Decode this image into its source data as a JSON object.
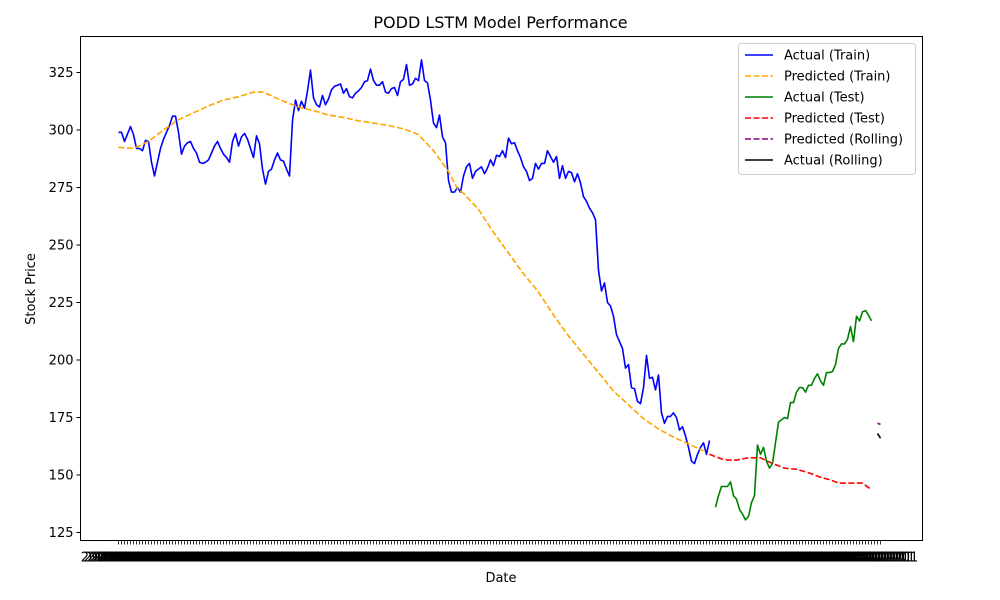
{
  "chart_data": {
    "type": "line",
    "title": "PODD LSTM Model Performance",
    "xlabel": "Date",
    "ylabel": "Stock Price",
    "x_tick_text": "2023-01-01",
    "ylim": [
      121,
      341
    ],
    "yticks": [
      125,
      150,
      175,
      200,
      225,
      250,
      275,
      300,
      325
    ],
    "xticks_count": 255,
    "grid": false,
    "legend_position": "top-right",
    "series": [
      {
        "name": "Actual (Train)",
        "color": "#0000ff",
        "dash": "solid",
        "points": [
          [
            0,
            299
          ],
          [
            1,
            299
          ],
          [
            2,
            295
          ],
          [
            4,
            301.5
          ],
          [
            5,
            298
          ],
          [
            6,
            292
          ],
          [
            7,
            292
          ],
          [
            8,
            291
          ],
          [
            9,
            295.5
          ],
          [
            10,
            295
          ],
          [
            11,
            286
          ],
          [
            12,
            280
          ],
          [
            13,
            286
          ],
          [
            14,
            292
          ],
          [
            15,
            296
          ],
          [
            16,
            299
          ],
          [
            17,
            302
          ],
          [
            18,
            306
          ],
          [
            19,
            306
          ],
          [
            20,
            299
          ],
          [
            21,
            289.5
          ],
          [
            22,
            293
          ],
          [
            23,
            294.5
          ],
          [
            24,
            295
          ],
          [
            25,
            292
          ],
          [
            26,
            290
          ],
          [
            27,
            286
          ],
          [
            28,
            285.5
          ],
          [
            29,
            286
          ],
          [
            30,
            287
          ],
          [
            31,
            290
          ],
          [
            32,
            293
          ],
          [
            33,
            295
          ],
          [
            34,
            292
          ],
          [
            35,
            289.5
          ],
          [
            36,
            288
          ],
          [
            37,
            286
          ],
          [
            38,
            295
          ],
          [
            39,
            298.5
          ],
          [
            40,
            293
          ],
          [
            41,
            297
          ],
          [
            42,
            298.5
          ],
          [
            43,
            296
          ],
          [
            44,
            292
          ],
          [
            45,
            288
          ],
          [
            46,
            297.5
          ],
          [
            47,
            294
          ],
          [
            48,
            283
          ],
          [
            49,
            276.5
          ],
          [
            50,
            282
          ],
          [
            51,
            283
          ],
          [
            52,
            287
          ],
          [
            53,
            290
          ],
          [
            54,
            287
          ],
          [
            55,
            286.5
          ],
          [
            56,
            283
          ],
          [
            57,
            280
          ],
          [
            58,
            304
          ],
          [
            59,
            313
          ],
          [
            60,
            308.5
          ],
          [
            61,
            312.5
          ],
          [
            62,
            309.5
          ],
          [
            63,
            317
          ],
          [
            64,
            326
          ],
          [
            65,
            314
          ],
          [
            66,
            311
          ],
          [
            67,
            310
          ],
          [
            68,
            315
          ],
          [
            69,
            311
          ],
          [
            70,
            313.5
          ],
          [
            71,
            317.5
          ],
          [
            72,
            319
          ],
          [
            73,
            319.5
          ],
          [
            74,
            320
          ],
          [
            75,
            316
          ],
          [
            76,
            318
          ],
          [
            77,
            314.5
          ],
          [
            78,
            314
          ],
          [
            79,
            316
          ],
          [
            80,
            317
          ],
          [
            81,
            318.5
          ],
          [
            82,
            321
          ],
          [
            83,
            321.5
          ],
          [
            84,
            326.5
          ],
          [
            85,
            321.5
          ],
          [
            86,
            319.5
          ],
          [
            87,
            319.5
          ],
          [
            88,
            321
          ],
          [
            89,
            316.5
          ],
          [
            90,
            316
          ],
          [
            91,
            318
          ],
          [
            92,
            318.5
          ],
          [
            93,
            315
          ],
          [
            94,
            321
          ],
          [
            95,
            322
          ],
          [
            96,
            328.5
          ],
          [
            97,
            319.5
          ],
          [
            98,
            320
          ],
          [
            99,
            322.5
          ],
          [
            100,
            321.5
          ],
          [
            101,
            330.5
          ],
          [
            102,
            321.5
          ],
          [
            103,
            320.5
          ],
          [
            104,
            313
          ],
          [
            105,
            303
          ],
          [
            106,
            301
          ],
          [
            107,
            306.5
          ],
          [
            108,
            297
          ],
          [
            109,
            294.5
          ],
          [
            110,
            278
          ],
          [
            111,
            273
          ],
          [
            112,
            273
          ],
          [
            113,
            275
          ],
          [
            114,
            273
          ],
          [
            115,
            280
          ],
          [
            116,
            284
          ],
          [
            117,
            285.5
          ],
          [
            118,
            279
          ],
          [
            119,
            282
          ],
          [
            120,
            283
          ],
          [
            121,
            284
          ],
          [
            122,
            281
          ],
          [
            123,
            283.5
          ],
          [
            124,
            287
          ],
          [
            125,
            284.5
          ],
          [
            126,
            289
          ],
          [
            127,
            288.5
          ],
          [
            128,
            291
          ],
          [
            129,
            288
          ],
          [
            130,
            296.5
          ],
          [
            131,
            294
          ],
          [
            132,
            294.5
          ],
          [
            133,
            291
          ],
          [
            134,
            288
          ],
          [
            135,
            284
          ],
          [
            136,
            282
          ],
          [
            137,
            278
          ],
          [
            138,
            279
          ],
          [
            139,
            285.5
          ],
          [
            140,
            283
          ],
          [
            141,
            285.5
          ],
          [
            142,
            285.5
          ],
          [
            143,
            291
          ],
          [
            144,
            288.5
          ],
          [
            145,
            286
          ],
          [
            146,
            288.5
          ],
          [
            147,
            279
          ],
          [
            148,
            284.5
          ],
          [
            149,
            279
          ],
          [
            150,
            282
          ],
          [
            151,
            281.5
          ],
          [
            152,
            277.5
          ],
          [
            153,
            281
          ],
          [
            154,
            277
          ],
          [
            155,
            271
          ],
          [
            156,
            269
          ],
          [
            157,
            266
          ],
          [
            158,
            264
          ],
          [
            159,
            261
          ],
          [
            160,
            239
          ],
          [
            161,
            230
          ],
          [
            162,
            233.5
          ],
          [
            163,
            225
          ],
          [
            164,
            223.5
          ],
          [
            165,
            219
          ],
          [
            166,
            211
          ],
          [
            167,
            208
          ],
          [
            168,
            205
          ],
          [
            169,
            196.5
          ],
          [
            170,
            198
          ],
          [
            171,
            188
          ],
          [
            172,
            187.5
          ],
          [
            173,
            182
          ],
          [
            174,
            181
          ],
          [
            175,
            188
          ],
          [
            176,
            202
          ],
          [
            177,
            192
          ],
          [
            178,
            192.5
          ],
          [
            179,
            187
          ],
          [
            180,
            193.5
          ],
          [
            181,
            177
          ],
          [
            182,
            172.5
          ],
          [
            183,
            175.5
          ],
          [
            184,
            175.5
          ],
          [
            185,
            177
          ],
          [
            186,
            175
          ],
          [
            187,
            169.5
          ],
          [
            188,
            171
          ],
          [
            189,
            167
          ],
          [
            190,
            162
          ],
          [
            191,
            156
          ],
          [
            192,
            155
          ],
          [
            193,
            159
          ],
          [
            194,
            162
          ],
          [
            195,
            164
          ],
          [
            196,
            159
          ],
          [
            197,
            165
          ]
        ]
      },
      {
        "name": "Predicted (Train)",
        "color": "#ffa500",
        "dash": "dashed",
        "points": [
          [
            0,
            292.5
          ],
          [
            5,
            292
          ],
          [
            10,
            295
          ],
          [
            15,
            300
          ],
          [
            20,
            304.5
          ],
          [
            25,
            307.5
          ],
          [
            30,
            310.5
          ],
          [
            35,
            313
          ],
          [
            40,
            314.5
          ],
          [
            45,
            316.5
          ],
          [
            48,
            316.5
          ],
          [
            50,
            315.5
          ],
          [
            55,
            312.5
          ],
          [
            60,
            310
          ],
          [
            65,
            308.5
          ],
          [
            70,
            306.5
          ],
          [
            75,
            305.5
          ],
          [
            80,
            304
          ],
          [
            85,
            303
          ],
          [
            90,
            302
          ],
          [
            95,
            300.5
          ],
          [
            100,
            298
          ],
          [
            105,
            291
          ],
          [
            110,
            282
          ],
          [
            113,
            274.5
          ],
          [
            115,
            272.5
          ],
          [
            120,
            265.5
          ],
          [
            125,
            255.5
          ],
          [
            130,
            246.5
          ],
          [
            135,
            237.5
          ],
          [
            140,
            229.5
          ],
          [
            145,
            219.5
          ],
          [
            150,
            210.5
          ],
          [
            155,
            202.5
          ],
          [
            160,
            194.5
          ],
          [
            165,
            186.5
          ],
          [
            170,
            180.5
          ],
          [
            175,
            174.5
          ],
          [
            180,
            170
          ],
          [
            185,
            166.5
          ],
          [
            190,
            163.5
          ],
          [
            195,
            160.5
          ]
        ]
      },
      {
        "name": "Actual (Test)",
        "color": "#008000",
        "dash": "solid",
        "points": [
          [
            199,
            136
          ],
          [
            200,
            141
          ],
          [
            201,
            145
          ],
          [
            202,
            145
          ],
          [
            203,
            145
          ],
          [
            204,
            147
          ],
          [
            205,
            141
          ],
          [
            206,
            139.5
          ],
          [
            207,
            135
          ],
          [
            208,
            133
          ],
          [
            209,
            130.5
          ],
          [
            210,
            132
          ],
          [
            211,
            138
          ],
          [
            212,
            141
          ],
          [
            213,
            163
          ],
          [
            214,
            159
          ],
          [
            215,
            162
          ],
          [
            216,
            156
          ],
          [
            217,
            153
          ],
          [
            218,
            155
          ],
          [
            219,
            164
          ],
          [
            220,
            173
          ],
          [
            221,
            174
          ],
          [
            222,
            175
          ],
          [
            223,
            174.5
          ],
          [
            224,
            181.5
          ],
          [
            225,
            181.5
          ],
          [
            226,
            186
          ],
          [
            227,
            188
          ],
          [
            228,
            188
          ],
          [
            229,
            186
          ],
          [
            230,
            189
          ],
          [
            231,
            189
          ],
          [
            232,
            192
          ],
          [
            233,
            194
          ],
          [
            234,
            191
          ],
          [
            235,
            189
          ],
          [
            236,
            194.5
          ],
          [
            237,
            194.5
          ],
          [
            238,
            195
          ],
          [
            239,
            198
          ],
          [
            240,
            205
          ],
          [
            241,
            207
          ],
          [
            242,
            207
          ],
          [
            243,
            209
          ],
          [
            244,
            214.5
          ],
          [
            245,
            208
          ],
          [
            246,
            219
          ],
          [
            247,
            217
          ],
          [
            248,
            221
          ],
          [
            249,
            221.5
          ],
          [
            250,
            219.5
          ],
          [
            251,
            217
          ]
        ]
      },
      {
        "name": "Predicted (Test)",
        "color": "#ff0000",
        "dash": "dashed",
        "points": [
          [
            197,
            159
          ],
          [
            199,
            158
          ],
          [
            201,
            157
          ],
          [
            203,
            156.5
          ],
          [
            206,
            156.5
          ],
          [
            208,
            157
          ],
          [
            210,
            157.5
          ],
          [
            214,
            157.5
          ],
          [
            218,
            155
          ],
          [
            222,
            153
          ],
          [
            226,
            152.5
          ],
          [
            230,
            151
          ],
          [
            234,
            149
          ],
          [
            237,
            148
          ],
          [
            240,
            146.5
          ],
          [
            244,
            146.5
          ],
          [
            248,
            146.5
          ],
          [
            251,
            143.5
          ]
        ]
      },
      {
        "name": "Predicted (Rolling)",
        "color": "#800080",
        "dash": "dashed",
        "points": [
          [
            253,
            172.5
          ],
          [
            254,
            172
          ]
        ]
      },
      {
        "name": "Actual (Rolling)",
        "color": "#000000",
        "dash": "solid",
        "points": [
          [
            253,
            168
          ],
          [
            254,
            166
          ]
        ]
      }
    ]
  }
}
